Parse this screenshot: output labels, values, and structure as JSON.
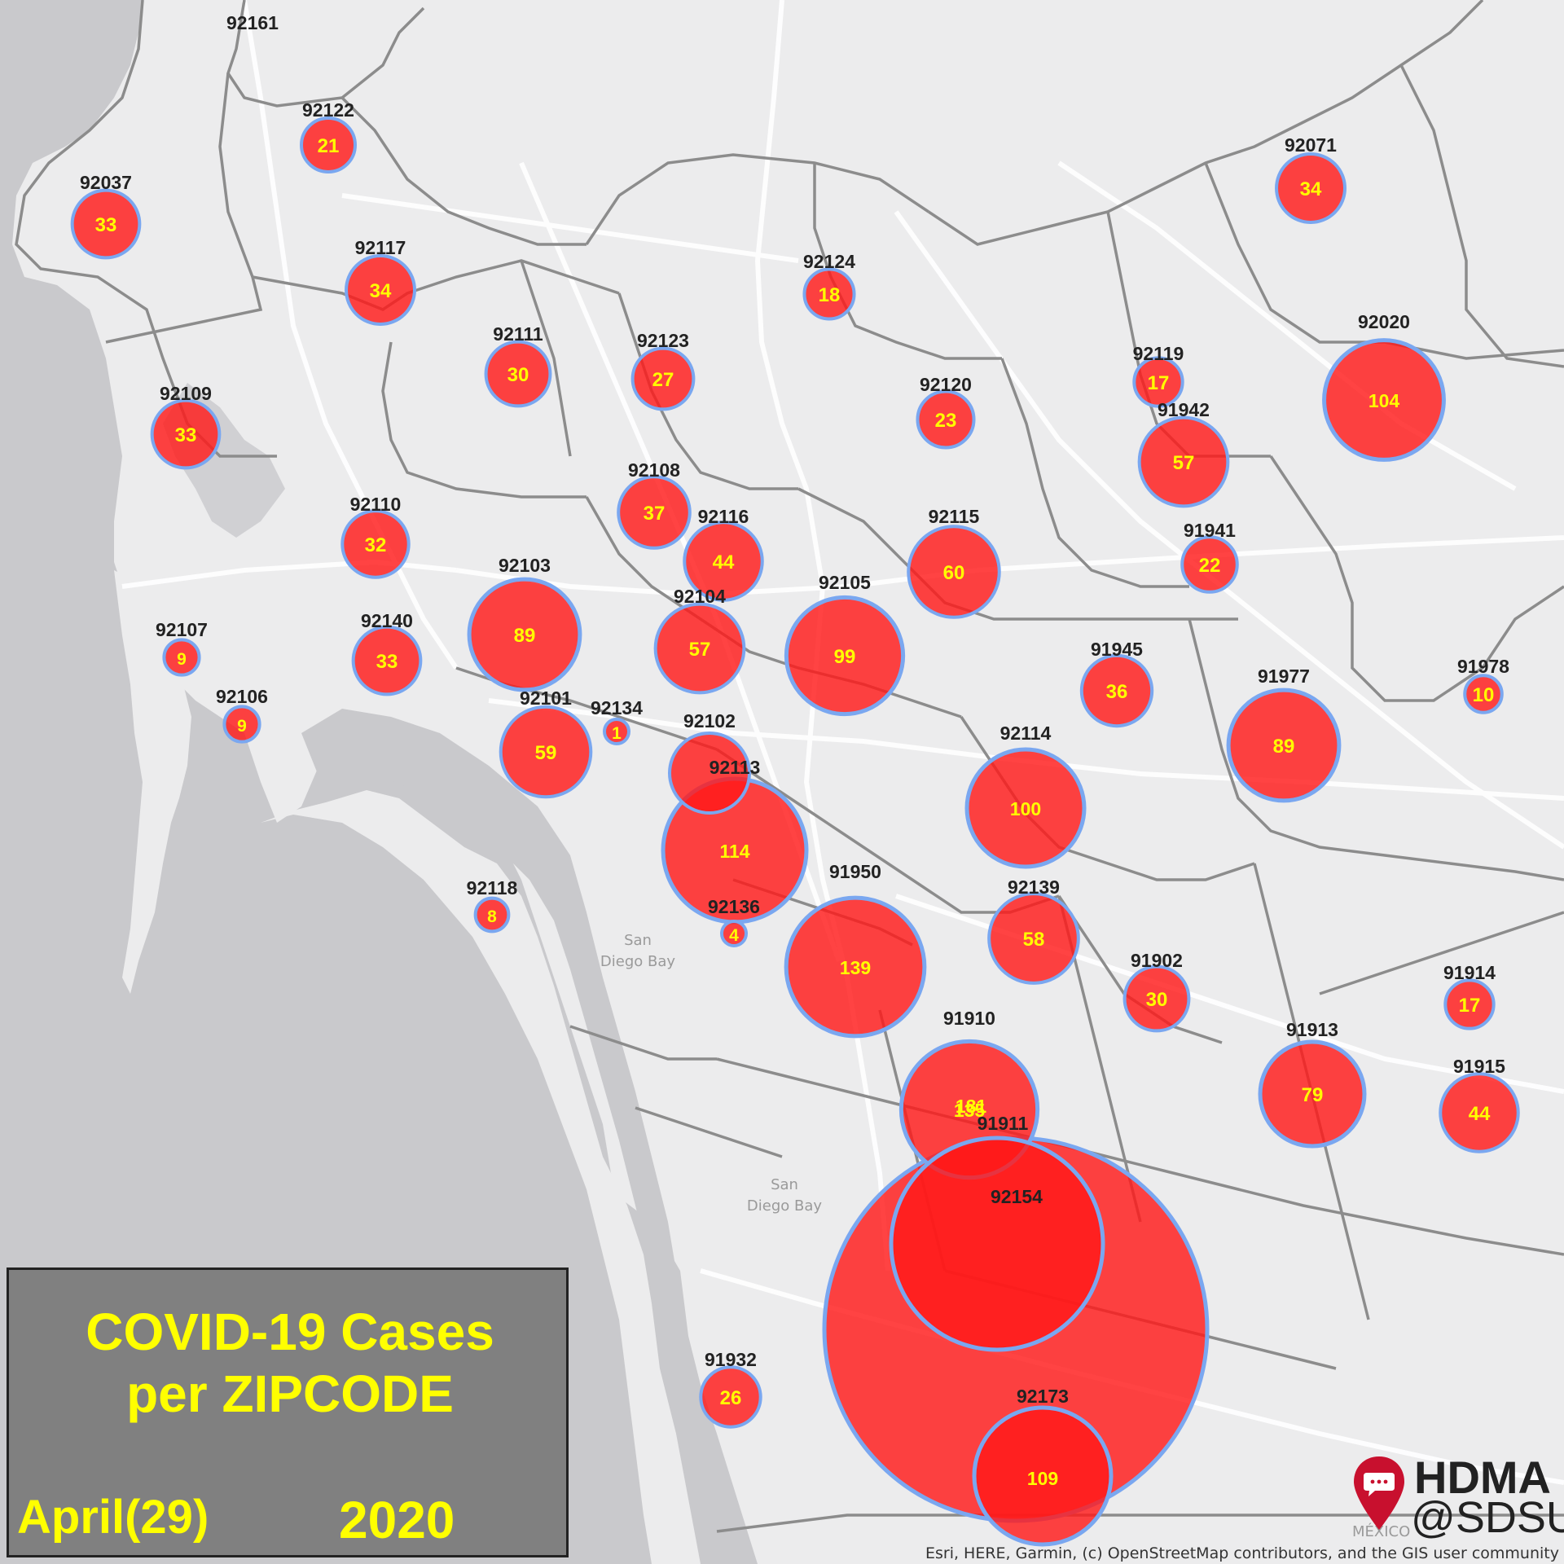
{
  "legend": {
    "title_line1": "COVID-19 Cases",
    "title_line2": "per ZIPCODE",
    "date": "April(29)",
    "year": "2020"
  },
  "logo": {
    "line1": "HDMA",
    "line2": "@SDSU"
  },
  "attribution": "Esri, HERE, Garmin, (c) OpenStreetMap contributors, and the GIS user community",
  "water_labels": [
    "San",
    "Diego Bay",
    "San",
    "Diego Bay",
    "MÉXICO"
  ],
  "colors": {
    "land": "#ececed",
    "water": "#c9c9cc",
    "boundary": "#8c8c8c",
    "bubble_fill": "#ff1a1a",
    "bubble_stroke": "#7aa7f0",
    "count_text": "#ffff00"
  },
  "zipcodes": [
    {
      "zip": "92161",
      "cases": null
    },
    {
      "zip": "92122",
      "cases": 21
    },
    {
      "zip": "92037",
      "cases": 33
    },
    {
      "zip": "92117",
      "cases": 34
    },
    {
      "zip": "92109",
      "cases": 33
    },
    {
      "zip": "92111",
      "cases": 30
    },
    {
      "zip": "92123",
      "cases": 27
    },
    {
      "zip": "92124",
      "cases": 18
    },
    {
      "zip": "92071",
      "cases": 34
    },
    {
      "zip": "92119",
      "cases": 17
    },
    {
      "zip": "92120",
      "cases": 23
    },
    {
      "zip": "92020",
      "cases": 104
    },
    {
      "zip": "91942",
      "cases": 57
    },
    {
      "zip": "92108",
      "cases": 37
    },
    {
      "zip": "92110",
      "cases": 32
    },
    {
      "zip": "92116",
      "cases": 44
    },
    {
      "zip": "92115",
      "cases": 60
    },
    {
      "zip": "91941",
      "cases": 22
    },
    {
      "zip": "92103",
      "cases": 89
    },
    {
      "zip": "92104",
      "cases": 57
    },
    {
      "zip": "92105",
      "cases": 99
    },
    {
      "zip": "92107",
      "cases": 9
    },
    {
      "zip": "92140",
      "cases": 33
    },
    {
      "zip": "91945",
      "cases": 36
    },
    {
      "zip": "91977",
      "cases": 89
    },
    {
      "zip": "91978",
      "cases": 10
    },
    {
      "zip": "92106",
      "cases": 9
    },
    {
      "zip": "92101",
      "cases": 59
    },
    {
      "zip": "92134",
      "cases": 1
    },
    {
      "zip": "92102",
      "cases": null
    },
    {
      "zip": "92114",
      "cases": 100
    },
    {
      "zip": "92113",
      "cases": 114
    },
    {
      "zip": "92118",
      "cases": 8
    },
    {
      "zip": "91950",
      "cases": 139
    },
    {
      "zip": "92136",
      "cases": 4
    },
    {
      "zip": "92139",
      "cases": 58
    },
    {
      "zip": "91902",
      "cases": 30
    },
    {
      "zip": "91914",
      "cases": 17
    },
    {
      "zip": "91910",
      "cases": 135
    },
    {
      "zip": "91913",
      "cases": 79
    },
    {
      "zip": "91915",
      "cases": 44
    },
    {
      "zip": "91911",
      "cases": 181
    },
    {
      "zip": "92154",
      "cases": null
    },
    {
      "zip": "91932",
      "cases": 26
    },
    {
      "zip": "92173",
      "cases": 109
    }
  ]
}
